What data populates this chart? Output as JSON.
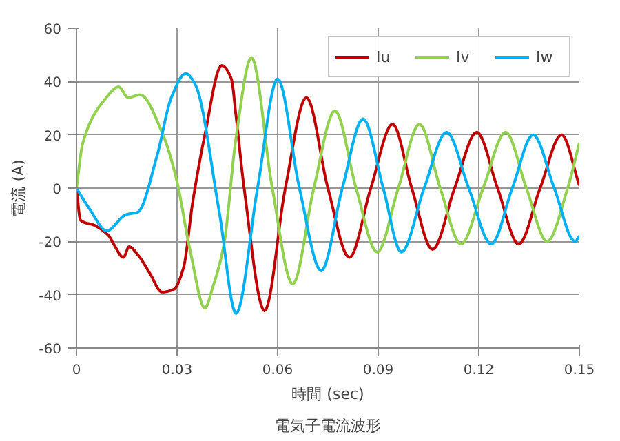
{
  "chart_data": {
    "type": "line",
    "xlabel": "時間 (sec)",
    "ylabel": "電流 (A)",
    "annotations": [
      "電気子電流波形"
    ],
    "xlim": [
      0,
      0.15
    ],
    "xticks": [
      0,
      0.03,
      0.06,
      0.09,
      0.12,
      0.15
    ],
    "ylim": [
      -60,
      60
    ],
    "yticks": [
      -60,
      -40,
      -20,
      0,
      20,
      40,
      60
    ],
    "grid": true,
    "legend": "top right",
    "marker": "none",
    "line_style": "solid",
    "series": [
      {
        "name": "Iu",
        "color": "#c00000",
        "x": [
          0,
          0.0012,
          0.0054,
          0.0097,
          0.0111,
          0.014,
          0.0157,
          0.0183,
          0.0219,
          0.0255,
          0.029,
          0.0319,
          0.0347,
          0.0383,
          0.0433,
          0.0462,
          0.0476,
          0.05,
          0.0561,
          0.0623,
          0.0686,
          0.075,
          0.0814,
          0.0878,
          0.0943,
          0.1,
          0.1062,
          0.1128,
          0.1194,
          0.1256,
          0.1319,
          0.1383,
          0.1447,
          0.15
        ],
        "values": [
          0,
          -12,
          -14,
          -18,
          -21,
          -26,
          -22,
          -25,
          -32,
          -39,
          -38,
          -30,
          -5,
          20,
          46,
          41,
          27,
          0,
          -46,
          0,
          34,
          0,
          -26,
          0,
          24,
          0,
          -23,
          0,
          21,
          0,
          -21,
          0,
          20,
          1
        ]
      },
      {
        "name": "Iv",
        "color": "#92d050",
        "x": [
          0,
          0.0019,
          0.0083,
          0.0126,
          0.0154,
          0.019,
          0.0255,
          0.0297,
          0.034,
          0.0383,
          0.0407,
          0.044,
          0.0476,
          0.0522,
          0.0584,
          0.0645,
          0.0708,
          0.0771,
          0.0834,
          0.0897,
          0.096,
          0.1023,
          0.1085,
          0.1147,
          0.1213,
          0.128,
          0.1342,
          0.1404,
          0.1465,
          0.15
        ],
        "values": [
          0,
          17,
          33,
          38,
          34,
          35,
          21,
          4,
          -24,
          -45,
          -37,
          -21,
          19,
          49,
          0,
          -36,
          0,
          29,
          0,
          -24,
          0,
          24,
          0,
          -21,
          0,
          21,
          0,
          -20,
          0,
          17
        ]
      },
      {
        "name": "Iw",
        "color": "#00b0f0",
        "x": [
          0,
          0.004,
          0.009,
          0.0147,
          0.0183,
          0.024,
          0.0283,
          0.0326,
          0.0354,
          0.0426,
          0.0476,
          0.054,
          0.06,
          0.0665,
          0.073,
          0.0793,
          0.0855,
          0.0915,
          0.0969,
          0.1037,
          0.1104,
          0.117,
          0.1237,
          0.13,
          0.1362,
          0.1425,
          0.1487,
          0.15
        ],
        "values": [
          0,
          -8,
          -16,
          -10,
          -9,
          12,
          34,
          43,
          39,
          -9,
          -47,
          0,
          41,
          0,
          -31,
          0,
          26,
          0,
          -24,
          0,
          21,
          0,
          -21,
          0,
          20,
          0,
          -20,
          -18
        ]
      }
    ]
  }
}
